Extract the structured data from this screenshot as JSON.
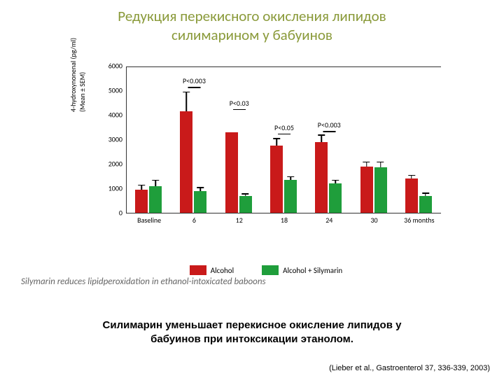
{
  "title": {
    "line1": "Редукция перекисного окисления липидов",
    "line2": "силимарином у бабуинов",
    "color": "#8a9a3a",
    "fontsize": 21
  },
  "chart": {
    "type": "bar",
    "ylabel_line1": "4-hydroxynonenal (pg/ml)",
    "ylabel_line2": "(Mean ± SEM)",
    "ylim": [
      0,
      6000
    ],
    "yticks": [
      0,
      1000,
      2000,
      3000,
      4000,
      5000,
      6000
    ],
    "categories": [
      "Baseline",
      "6",
      "12",
      "18",
      "24",
      "30",
      "36 months"
    ],
    "series": [
      {
        "name": "Alcohol",
        "color": "#c91a1a"
      },
      {
        "name": "Alcohol + Silymarin",
        "color": "#1f9e3b"
      }
    ],
    "data": {
      "alcohol": [
        950,
        4150,
        3300,
        2750,
        2900,
        1900,
        1400
      ],
      "alcohol_err": [
        200,
        800,
        0,
        300,
        300,
        200,
        150
      ],
      "silymarin": [
        1100,
        900,
        700,
        1350,
        1200,
        1850,
        700
      ],
      "silymarin_err": [
        250,
        150,
        100,
        150,
        150,
        250,
        120
      ]
    },
    "pvalues": [
      {
        "cat_index": 1,
        "label": "P<0.003",
        "y": 5200
      },
      {
        "cat_index": 2,
        "label": "P<0.03",
        "y": 4300
      },
      {
        "cat_index": 3,
        "label": "P<0.05",
        "y": 3300
      },
      {
        "cat_index": 4,
        "label": "P<0.003",
        "y": 3400
      }
    ],
    "background": "#ffffff",
    "maxbar": 6000
  },
  "caption": "Silymarin reduces lipidperoxidation in ethanol-intoxicated baboons",
  "boldnote": {
    "line1": "Силимарин уменьшает перекисное окисление липидов у",
    "line2": "бабуинов при интоксикации этанолом.",
    "fontsize": 15
  },
  "citation": "(Lieber et al., Gastroenterol 37, 336-339, 2003)"
}
